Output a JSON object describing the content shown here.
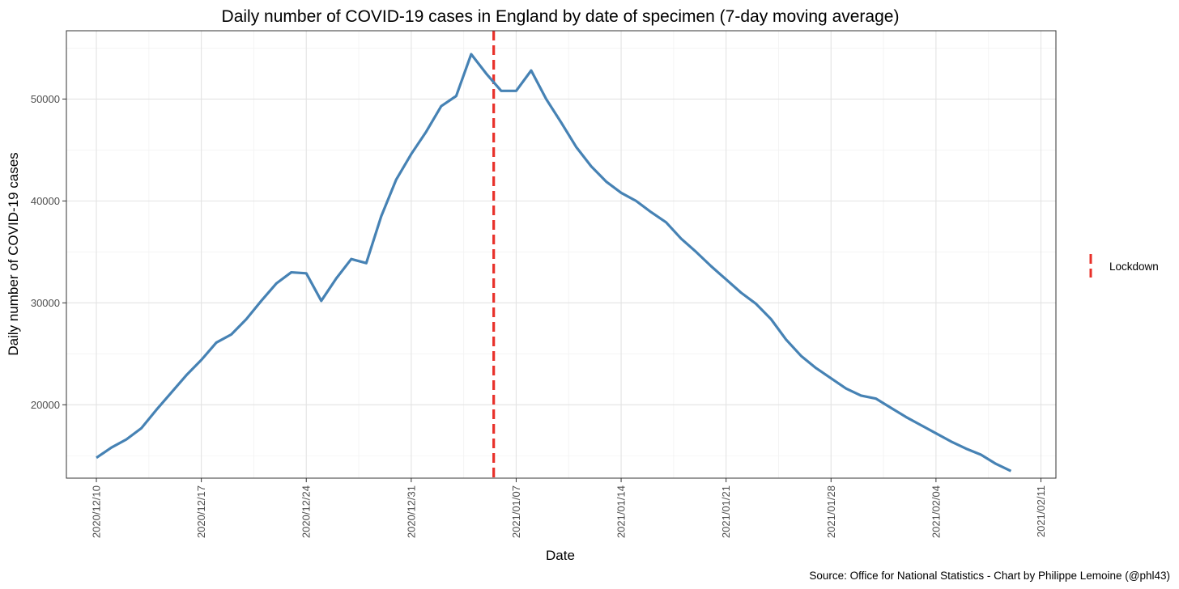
{
  "chart_data": {
    "type": "line",
    "title": "Daily number of COVID-19 cases in England by date of specimen (7-day moving average)",
    "xlabel": "Date",
    "ylabel": "Daily number of COVID-19 cases",
    "caption": "Source: Office for National Statistics - Chart by Philippe Lemoine (@phl43)",
    "xlim": [
      "2020-12-08",
      "2021-02-12"
    ],
    "ylim": [
      12800,
      56700
    ],
    "x_ticks": [
      "2020/12/10",
      "2020/12/17",
      "2020/12/24",
      "2020/12/31",
      "2021/01/07",
      "2021/01/14",
      "2021/01/21",
      "2021/01/28",
      "2021/02/04",
      "2021/02/11"
    ],
    "y_ticks": [
      20000,
      30000,
      40000,
      50000
    ],
    "grid": true,
    "legend": {
      "position": "right",
      "entries": [
        "Lockdown"
      ]
    },
    "lockdown_date": "2021-01-05",
    "series": [
      {
        "color": "#4682b4",
        "x": [
          "2020-12-10",
          "2020-12-11",
          "2020-12-12",
          "2020-12-13",
          "2020-12-14",
          "2020-12-15",
          "2020-12-16",
          "2020-12-17",
          "2020-12-18",
          "2020-12-19",
          "2020-12-20",
          "2020-12-21",
          "2020-12-22",
          "2020-12-23",
          "2020-12-24",
          "2020-12-25",
          "2020-12-26",
          "2020-12-27",
          "2020-12-28",
          "2020-12-29",
          "2020-12-30",
          "2020-12-31",
          "2021-01-01",
          "2021-01-02",
          "2021-01-03",
          "2021-01-04",
          "2021-01-05",
          "2021-01-06",
          "2021-01-07",
          "2021-01-08",
          "2021-01-09",
          "2021-01-10",
          "2021-01-11",
          "2021-01-12",
          "2021-01-13",
          "2021-01-14",
          "2021-01-15",
          "2021-01-16",
          "2021-01-17",
          "2021-01-18",
          "2021-01-19",
          "2021-01-20",
          "2021-01-21",
          "2021-01-22",
          "2021-01-23",
          "2021-01-24",
          "2021-01-25",
          "2021-01-26",
          "2021-01-27",
          "2021-01-28",
          "2021-01-29",
          "2021-01-30",
          "2021-01-31",
          "2021-02-01",
          "2021-02-02",
          "2021-02-03",
          "2021-02-04",
          "2021-02-05",
          "2021-02-06",
          "2021-02-07",
          "2021-02-08",
          "2021-02-09"
        ],
        "y": [
          14800,
          15800,
          16600,
          17700,
          19500,
          21200,
          22900,
          24400,
          26100,
          26900,
          28400,
          30200,
          31900,
          33000,
          32900,
          30200,
          32400,
          34300,
          33900,
          38500,
          42100,
          44600,
          46800,
          49300,
          50300,
          54400,
          52500,
          50800,
          50800,
          52800,
          50000,
          47700,
          45300,
          43400,
          41900,
          40800,
          40000,
          38900,
          37900,
          36300,
          35000,
          33600,
          32300,
          31000,
          29900,
          28400,
          26400,
          24800,
          23600,
          22600,
          21600,
          20900,
          20600,
          19700,
          18800,
          18000,
          17200,
          16400,
          15700,
          15100,
          14200,
          13500
        ]
      }
    ]
  }
}
